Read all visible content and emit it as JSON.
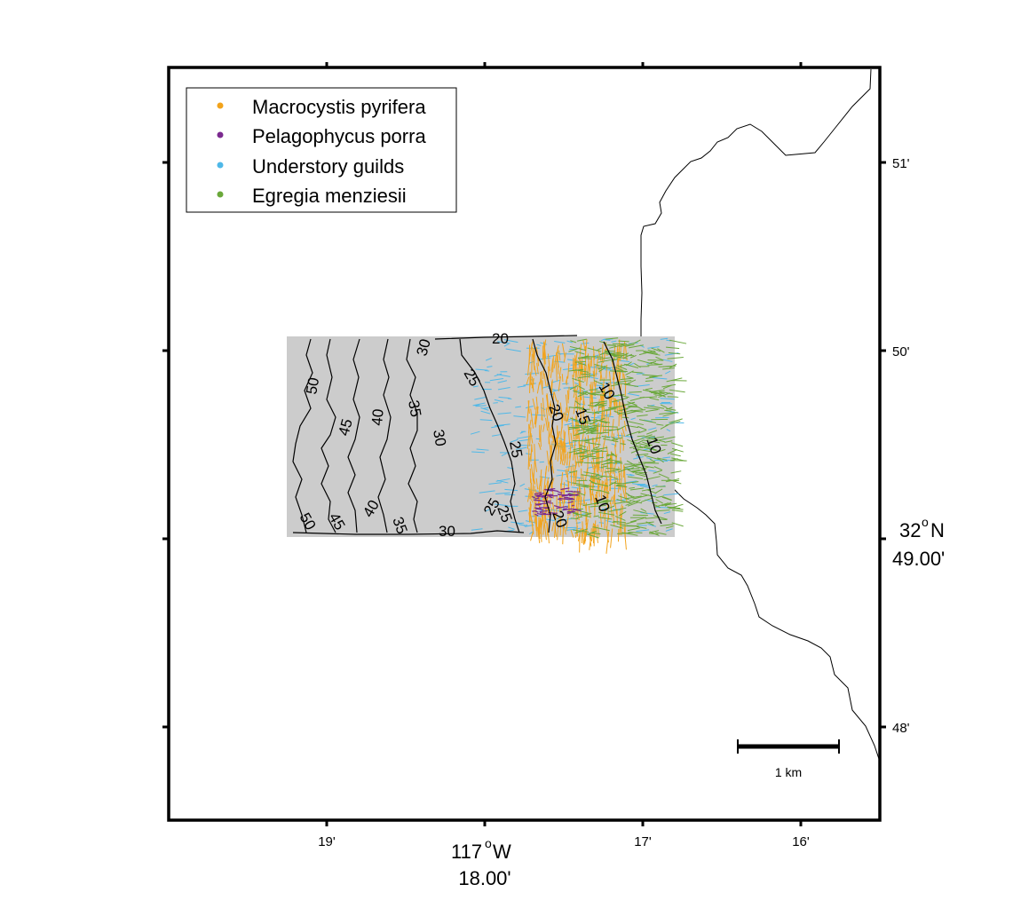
{
  "legend": {
    "items": [
      {
        "label": "Macrocystis pyrifera",
        "color": "#f2a31b"
      },
      {
        "label": "Pelagophycus porra",
        "color": "#7b2a8f"
      },
      {
        "label": "Understory guilds",
        "color": "#4fb8e8"
      },
      {
        "label": "Egregia menziesii",
        "color": "#6aa83a"
      }
    ]
  },
  "axes": {
    "x_ticks": [
      "19'",
      "17'",
      "16'"
    ],
    "x_center_deg": "117",
    "x_center_deg_sup": "o",
    "x_center_hem": "W",
    "x_center_min": "18.00'",
    "y_ticks": [
      "51'",
      "50'",
      "48'"
    ],
    "y_center_deg": "32",
    "y_center_deg_sup": "o",
    "y_center_hem": "N",
    "y_center_min": "49.00'"
  },
  "contours": {
    "labels": [
      "50",
      "45",
      "40",
      "35",
      "30",
      "25",
      "20",
      "30",
      "25",
      "20",
      "15",
      "10",
      "10",
      "10",
      "25",
      "20",
      "50",
      "45",
      "40",
      "35",
      "30",
      "25"
    ]
  },
  "scale_bar": {
    "label": "1 km"
  },
  "colors": {
    "survey_area": "#cccccc",
    "frame": "#000000",
    "coastline": "#000000"
  }
}
